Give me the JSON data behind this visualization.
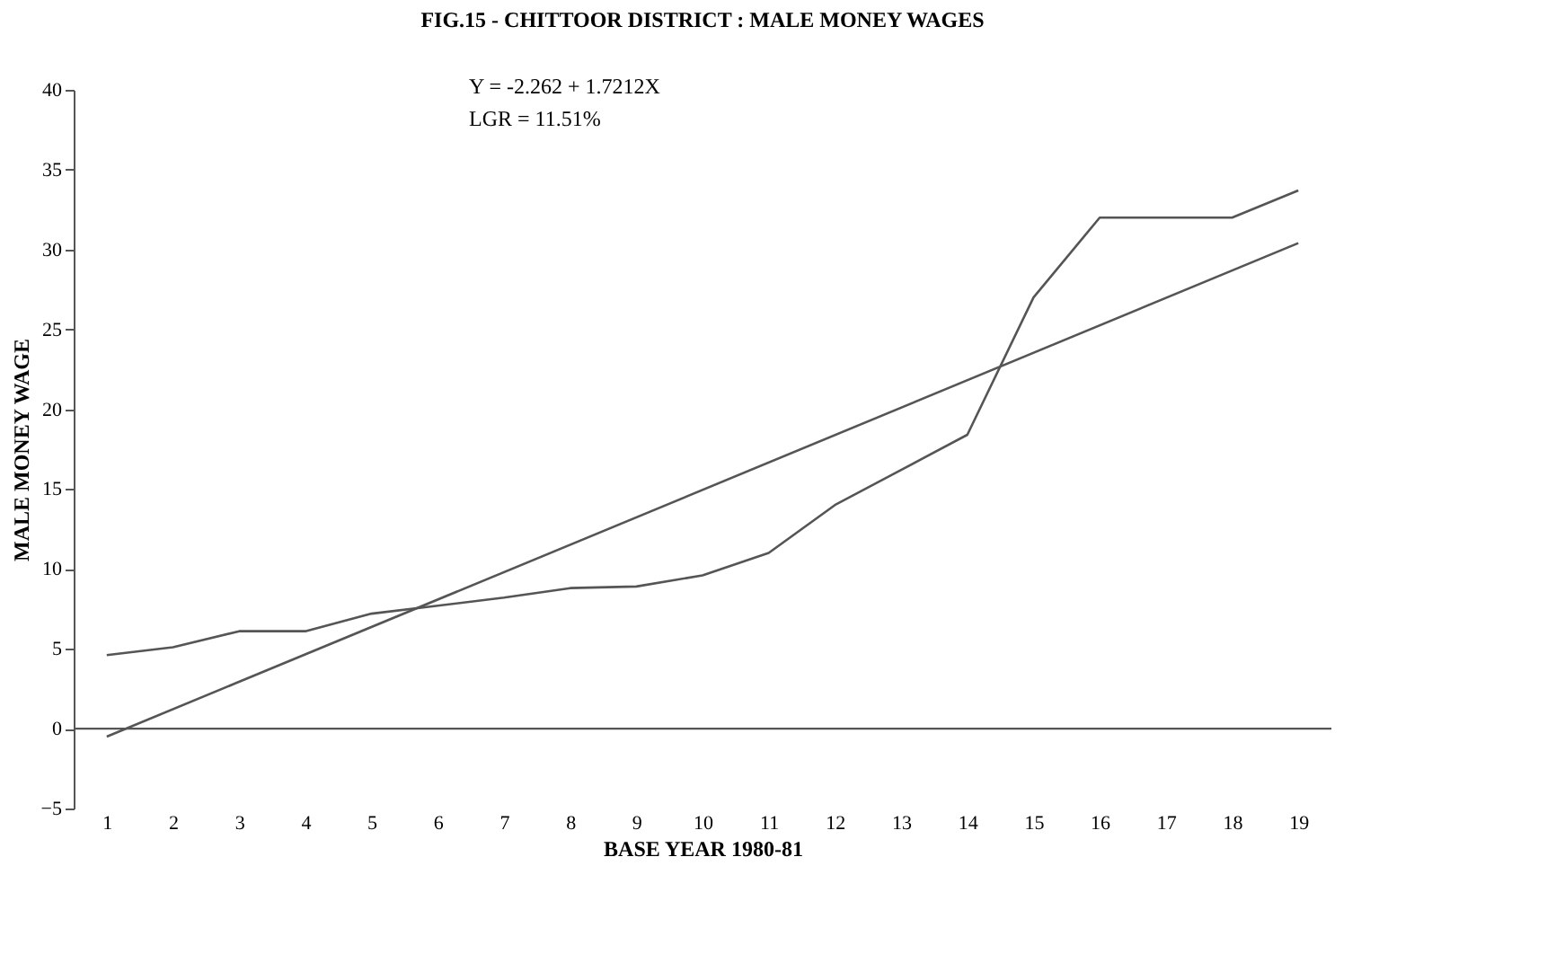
{
  "chart_data": {
    "type": "line",
    "title": "FIG.15 - CHITTOOR DISTRICT : MALE MONEY WAGES",
    "xlabel": "BASE YEAR 1980-81",
    "ylabel": "MALE MONEY WAGE",
    "annotations": [
      "Y = -2.262 + 1.7212X",
      "LGR = 11.51%"
    ],
    "series": [
      {
        "color": "#555555",
        "x": [
          1,
          2,
          3,
          4,
          5,
          6,
          7,
          8,
          9,
          10,
          11,
          12,
          13,
          14,
          15,
          16,
          17,
          18,
          19
        ],
        "values": [
          4.6,
          5.1,
          6.1,
          6.1,
          7.2,
          7.7,
          8.2,
          8.8,
          8.9,
          9.6,
          11,
          14,
          16.2,
          18.4,
          27,
          32,
          32,
          32,
          33.7
        ]
      },
      {
        "type": "line",
        "color": "#555555",
        "x": [
          1,
          19
        ],
        "values": [
          -0.5,
          30.4
        ]
      }
    ],
    "xlim": [
      0.5,
      19.5
    ],
    "xticks": [
      1,
      2,
      3,
      4,
      5,
      6,
      7,
      8,
      9,
      10,
      11,
      12,
      13,
      14,
      15,
      16,
      17,
      18,
      19
    ],
    "ylim": [
      -5,
      40
    ],
    "yticks": [
      -5,
      0,
      5,
      10,
      15,
      20,
      25,
      30,
      35,
      40
    ],
    "ref_lines": [
      {
        "axis": "y",
        "value": 0,
        "color": "#555555"
      }
    ],
    "grid": false,
    "marker": "none",
    "line_style": "solid"
  }
}
